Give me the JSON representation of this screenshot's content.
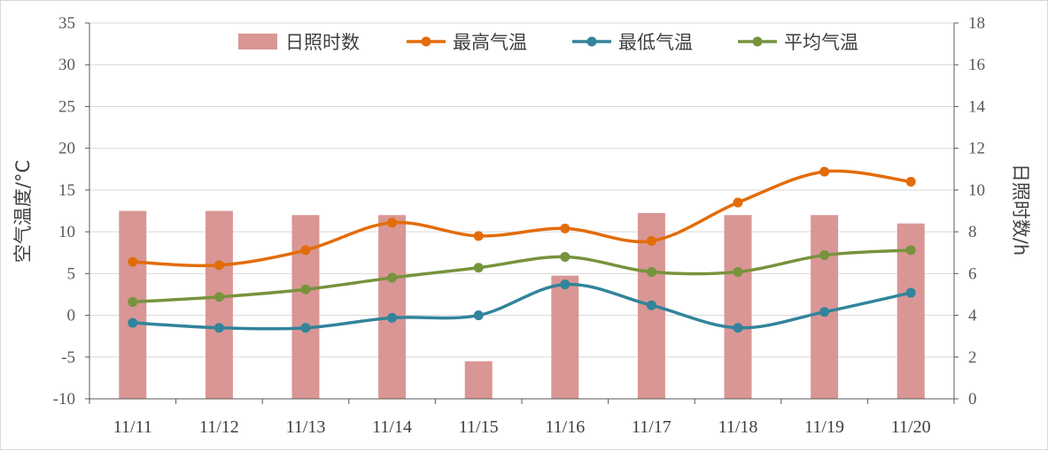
{
  "chart_data": {
    "type": "bar+line",
    "categories": [
      "11/11",
      "11/12",
      "11/13",
      "11/14",
      "11/15",
      "11/16",
      "11/17",
      "11/18",
      "11/19",
      "11/20"
    ],
    "series": [
      {
        "name": "日照时数",
        "type": "bar",
        "axis": "right",
        "color": "#d99694",
        "values": [
          9.0,
          9.0,
          8.8,
          8.8,
          1.8,
          5.9,
          8.9,
          8.8,
          8.8,
          8.4
        ]
      },
      {
        "name": "最高气温",
        "type": "line",
        "axis": "left",
        "color": "#e36c0a",
        "values": [
          6.4,
          6.0,
          7.8,
          11.1,
          9.5,
          10.4,
          8.9,
          13.5,
          17.2,
          16.0
        ]
      },
      {
        "name": "最低气温",
        "type": "line",
        "axis": "left",
        "color": "#31849b",
        "values": [
          -0.9,
          -1.5,
          -1.5,
          -0.3,
          0.0,
          3.7,
          1.2,
          -1.5,
          0.4,
          2.7
        ]
      },
      {
        "name": "平均气温",
        "type": "line",
        "axis": "left",
        "color": "#77933c",
        "values": [
          1.6,
          2.2,
          3.1,
          4.5,
          5.7,
          7.0,
          5.2,
          5.2,
          7.2,
          7.8
        ]
      }
    ],
    "y_left": {
      "label": "空气温度/°C",
      "min": -10,
      "max": 35,
      "step": 5,
      "ticks": [
        "-10",
        "-5",
        "0",
        "5",
        "10",
        "15",
        "20",
        "25",
        "30",
        "35"
      ]
    },
    "y_right": {
      "label": "日照时数/h",
      "min": 0,
      "max": 18,
      "step": 2,
      "ticks": [
        "0",
        "2",
        "4",
        "6",
        "8",
        "10",
        "12",
        "14",
        "16",
        "18"
      ]
    },
    "grid": true,
    "legend_position": "top"
  }
}
